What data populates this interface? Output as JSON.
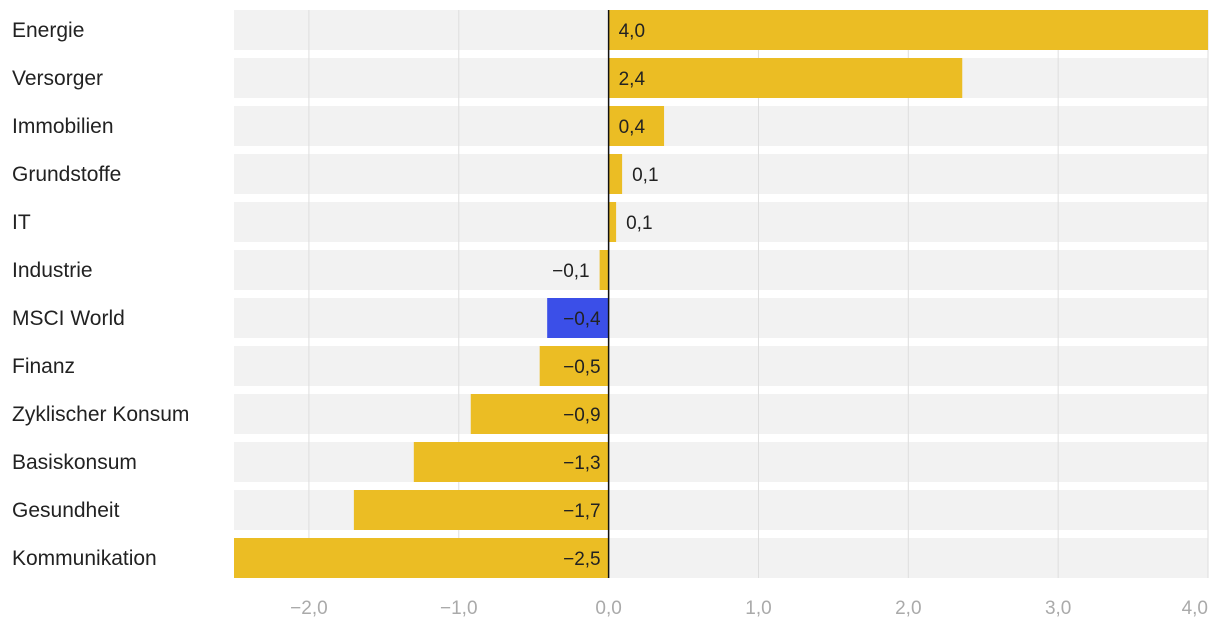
{
  "chart_data": {
    "type": "bar",
    "orientation": "horizontal",
    "categories": [
      "Energie",
      "Versorger",
      "Immobilien",
      "Grundstoffe",
      "IT",
      "Industrie",
      "MSCI World",
      "Finanz",
      "Zyklischer Konsum",
      "Basiskonsum",
      "Gesundheit",
      "Kommunikation"
    ],
    "values": [
      4.0,
      2.36,
      0.37,
      0.09,
      0.05,
      -0.06,
      -0.41,
      -0.46,
      -0.92,
      -1.3,
      -1.7,
      -2.5
    ],
    "value_labels": [
      "4,0",
      "2,4",
      "0,4",
      "0,1",
      "0,1",
      "−0,1",
      "−0,4",
      "−0,5",
      "−0,9",
      "−1,3",
      "−1,7",
      "−2,5"
    ],
    "highlight_category": "MSCI World",
    "xlim": [
      -2.5,
      4.0
    ],
    "xticks": [
      -2.0,
      -1.0,
      0.0,
      1.0,
      2.0,
      3.0,
      4.0
    ],
    "xtick_labels": [
      "−2,0",
      "−1,0",
      "0,0",
      "1,0",
      "2,0",
      "3,0",
      "4,0"
    ],
    "grid": true,
    "title": "",
    "xlabel": "",
    "ylabel": ""
  },
  "colors": {
    "bar": "#ebbd24",
    "highlight": "#3b4fe8",
    "track": "#f2f2f2",
    "grid": "#dedede",
    "zero_line": "#111111",
    "text": "#222222",
    "tick_text": "#aaaaaa"
  }
}
